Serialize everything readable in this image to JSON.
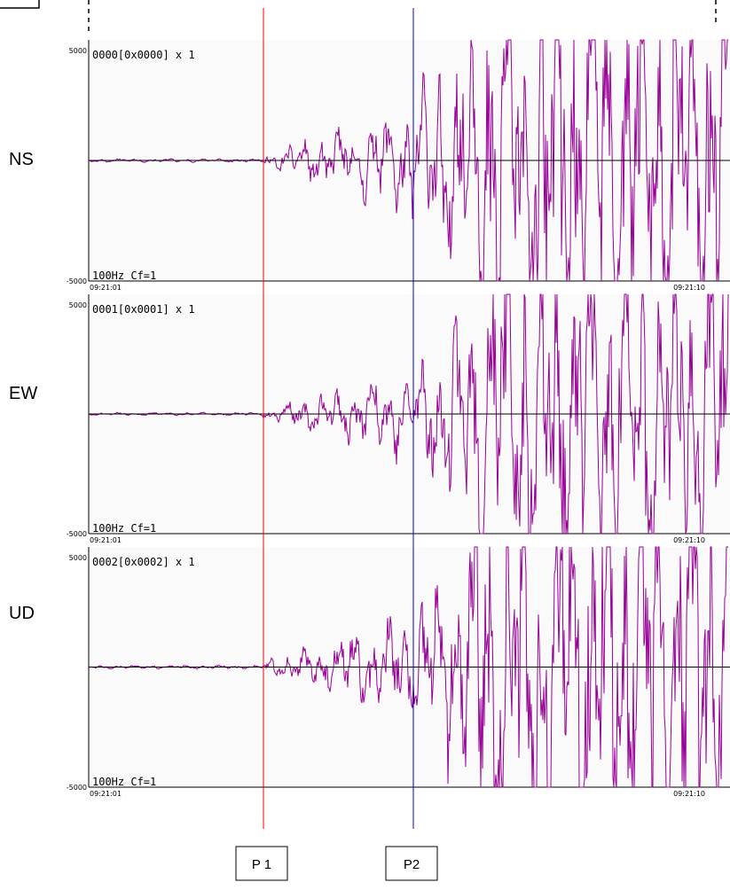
{
  "chart_data": [
    {
      "type": "line",
      "component": "NS",
      "channel_header": "0000[0x0000] x 1",
      "filter_label": "100Hz Cf=1",
      "ylim": [
        -5000,
        5000
      ],
      "y_top_label": "5000",
      "y_bottom_label": "-5000",
      "start_time": "09:21:01",
      "end_time": "09:21:10",
      "series": [
        {
          "color": "#990099",
          "seed": 11,
          "amp_scale": 1.0
        }
      ]
    },
    {
      "type": "line",
      "component": "EW",
      "channel_header": "0001[0x0001] x 1",
      "filter_label": "100Hz Cf=1",
      "ylim": [
        -5000,
        5000
      ],
      "y_top_label": "5000",
      "y_bottom_label": "-5000",
      "start_time": "09:21:01",
      "end_time": "09:21:10",
      "series": [
        {
          "color": "#990099",
          "seed": 23,
          "amp_scale": 0.8
        }
      ]
    },
    {
      "type": "line",
      "component": "UD",
      "channel_header": "0002[0x0002] x 1",
      "filter_label": "100Hz Cf=1",
      "ylim": [
        -5000,
        5000
      ],
      "y_top_label": "5000",
      "y_bottom_label": "-5000",
      "start_time": "09:21:01",
      "end_time": "09:21:10",
      "series": [
        {
          "color": "#990099",
          "seed": 37,
          "amp_scale": 1.0
        }
      ]
    }
  ],
  "markers": [
    {
      "label": "P 1",
      "color": "#ff0000"
    },
    {
      "label": "P2",
      "color": "#0000cc"
    }
  ]
}
